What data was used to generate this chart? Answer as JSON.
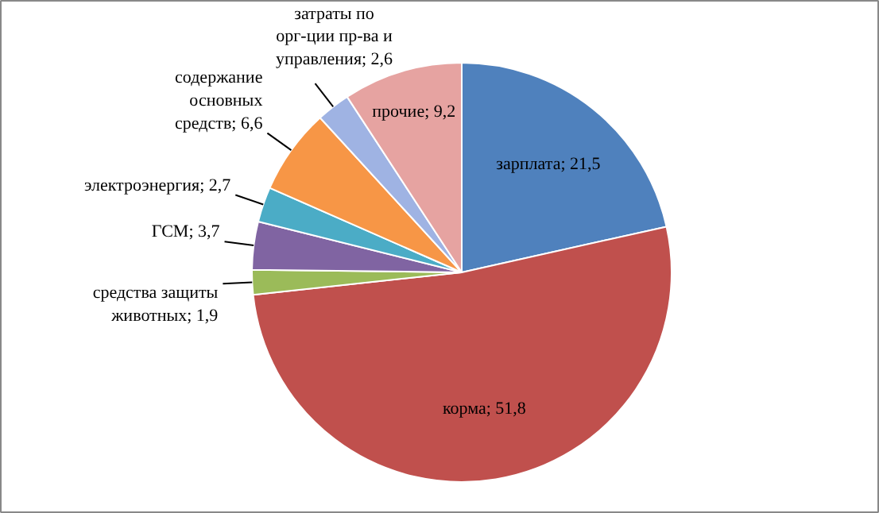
{
  "chart_data": {
    "type": "pie",
    "categories": [
      "зарплата",
      "корма",
      "средства защиты животных",
      "ГСМ",
      "электроэнергия",
      "содержание основных средств",
      "затраты по орг-ции пр-ва и управления",
      "прочие"
    ],
    "values": [
      21.5,
      51.8,
      1.9,
      3.7,
      2.7,
      6.6,
      2.6,
      9.2
    ],
    "value_labels": [
      "21,5",
      "51,8",
      "1,9",
      "3,7",
      "2,7",
      "6,6",
      "2,6",
      "9,2"
    ],
    "colors": [
      "#4f81bd",
      "#c0504d",
      "#9bbb59",
      "#8064a2",
      "#4bacc6",
      "#f79646",
      "#9fb3e3",
      "#e6a3a1"
    ],
    "legend": false
  }
}
